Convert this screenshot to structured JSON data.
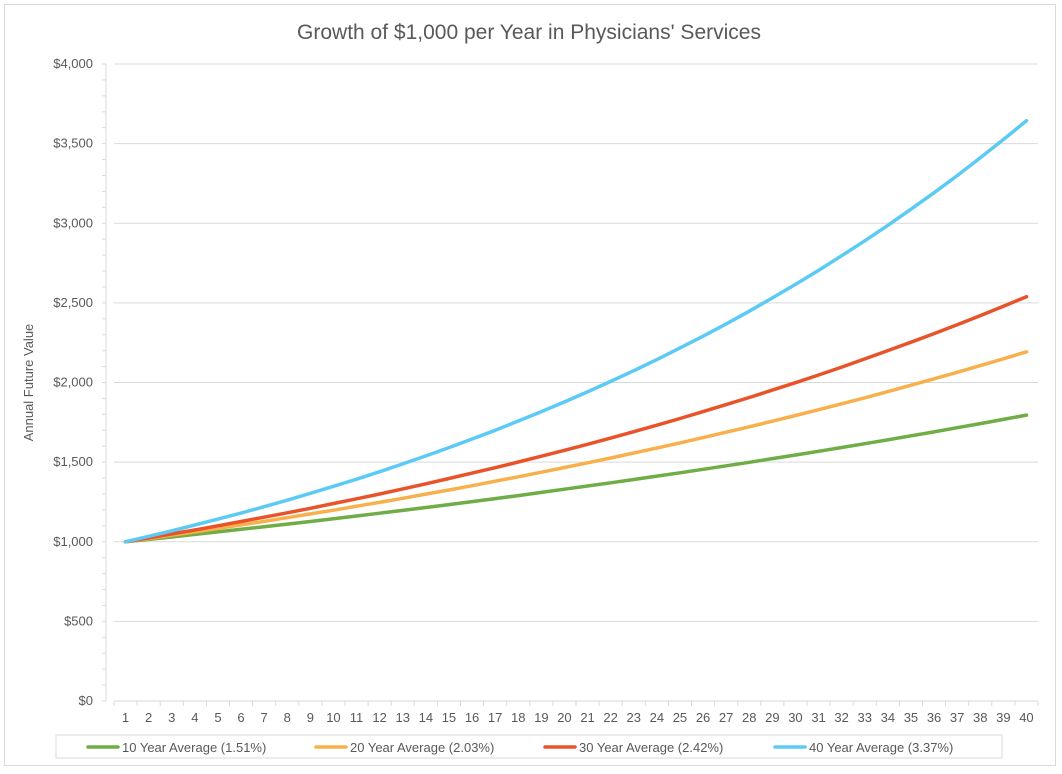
{
  "chart_data": {
    "type": "line",
    "title": "Growth of $1,000 per Year in Physicians' Services",
    "xlabel": "",
    "ylabel": "Annual Future Value",
    "ylim": [
      0,
      4000
    ],
    "yticks": [
      0,
      500,
      1000,
      1500,
      2000,
      2500,
      3000,
      3500,
      4000
    ],
    "ytick_labels": [
      "$0",
      "$500",
      "$1,000",
      "$1,500",
      "$2,000",
      "$2,500",
      "$3,000",
      "$3,500",
      "$4,000"
    ],
    "x": [
      1,
      2,
      3,
      4,
      5,
      6,
      7,
      8,
      9,
      10,
      11,
      12,
      13,
      14,
      15,
      16,
      17,
      18,
      19,
      20,
      21,
      22,
      23,
      24,
      25,
      26,
      27,
      28,
      29,
      30,
      31,
      32,
      33,
      34,
      35,
      36,
      37,
      38,
      39,
      40
    ],
    "grid": true,
    "legend_position": "bottom",
    "series": [
      {
        "name": "10 Year Average (1.51%)",
        "color": "#70ad47",
        "values": [
          1000,
          1015,
          1030,
          1046,
          1062,
          1078,
          1094,
          1111,
          1127,
          1144,
          1162,
          1179,
          1197,
          1215,
          1233,
          1252,
          1271,
          1290,
          1310,
          1330,
          1350,
          1370,
          1391,
          1412,
          1433,
          1455,
          1477,
          1499,
          1522,
          1545,
          1568,
          1592,
          1616,
          1640,
          1665,
          1690,
          1716,
          1742,
          1768,
          1795
        ]
      },
      {
        "name": "20 Year Average (2.03%)",
        "color": "#f8b04d",
        "values": [
          1000,
          1020,
          1041,
          1062,
          1084,
          1106,
          1128,
          1151,
          1175,
          1198,
          1223,
          1248,
          1273,
          1299,
          1325,
          1352,
          1380,
          1408,
          1437,
          1466,
          1496,
          1526,
          1557,
          1589,
          1621,
          1654,
          1688,
          1722,
          1757,
          1793,
          1829,
          1866,
          1904,
          1943,
          1983,
          2023,
          2064,
          2106,
          2149,
          2193
        ]
      },
      {
        "name": "30 Year Average (2.42%)",
        "color": "#e8532a",
        "values": [
          1000,
          1024,
          1049,
          1074,
          1100,
          1127,
          1154,
          1182,
          1210,
          1240,
          1270,
          1300,
          1332,
          1364,
          1397,
          1431,
          1465,
          1501,
          1537,
          1574,
          1612,
          1651,
          1691,
          1732,
          1774,
          1817,
          1861,
          1906,
          1952,
          1999,
          2047,
          2097,
          2148,
          2200,
          2253,
          2307,
          2363,
          2420,
          2479,
          2539
        ]
      },
      {
        "name": "40 Year Average (3.37%)",
        "color": "#5bcbf5",
        "values": [
          1000,
          1034,
          1069,
          1105,
          1142,
          1180,
          1220,
          1261,
          1304,
          1348,
          1393,
          1440,
          1489,
          1539,
          1591,
          1645,
          1700,
          1758,
          1817,
          1878,
          1941,
          2007,
          2074,
          2144,
          2217,
          2291,
          2368,
          2448,
          2531,
          2616,
          2704,
          2796,
          2890,
          2987,
          3088,
          3192,
          3299,
          3411,
          3526,
          3644
        ]
      }
    ]
  }
}
